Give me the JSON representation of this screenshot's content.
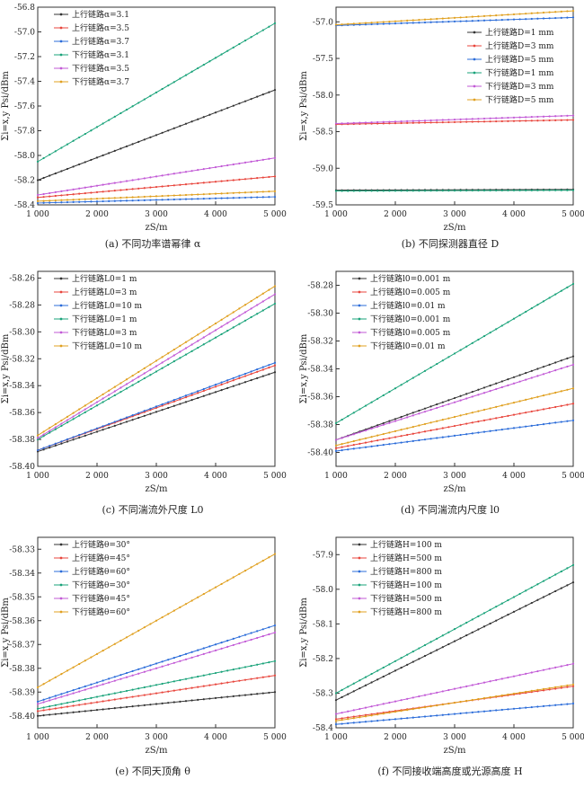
{
  "chart_data": [
    {
      "type": "line",
      "caption": "(a) 不同功率谱幂律 α",
      "ylabel": "Σi=x,y Psi/dBm",
      "xlabel": "zS/m",
      "xlim": [
        1000,
        5000
      ],
      "ylim": [
        -58.4,
        -56.8
      ],
      "xticks": [
        "1 000",
        "2 000",
        "3 000",
        "4 000",
        "5 000"
      ],
      "yticks": [
        "-56.8",
        "-57.0",
        "-57.2",
        "-57.4",
        "-57.6",
        "-57.8",
        "-58.0",
        "-58.2",
        "-58.4"
      ],
      "grid": false,
      "legend_position": "upper-left",
      "series": [
        {
          "name": "上行链路α=3.1",
          "color": "#333333",
          "x": [
            1000,
            5000
          ],
          "y": [
            -58.2,
            -57.47
          ]
        },
        {
          "name": "上行链路α=3.5",
          "color": "#e8453c",
          "x": [
            1000,
            5000
          ],
          "y": [
            -58.34,
            -58.17
          ]
        },
        {
          "name": "上行链路α=3.7",
          "color": "#2b6cd9",
          "x": [
            1000,
            5000
          ],
          "y": [
            -58.385,
            -58.335
          ]
        },
        {
          "name": "下行链路α=3.1",
          "color": "#1aa37a",
          "x": [
            1000,
            5000
          ],
          "y": [
            -58.05,
            -56.93
          ]
        },
        {
          "name": "下行链路α=3.5",
          "color": "#c25ad6",
          "x": [
            1000,
            5000
          ],
          "y": [
            -58.32,
            -58.02
          ]
        },
        {
          "name": "下行链路α=3.7",
          "color": "#e0a020",
          "x": [
            1000,
            5000
          ],
          "y": [
            -58.37,
            -58.29
          ]
        }
      ]
    },
    {
      "type": "line",
      "caption": "(b) 不同探测器直径 D",
      "ylabel": "Σi=x,y Psi/dBm",
      "xlabel": "zS/m",
      "xlim": [
        1000,
        5000
      ],
      "ylim": [
        -59.5,
        -56.8
      ],
      "xticks": [
        "1 000",
        "2 000",
        "3 000",
        "4 000",
        "5 000"
      ],
      "yticks": [
        "-57.0",
        "-57.5",
        "-58.0",
        "-58.5",
        "-59.0",
        "-59.5"
      ],
      "grid": false,
      "legend_position": "upper-right",
      "series": [
        {
          "name": "上行链路D=1 mm",
          "color": "#333333",
          "x": [
            1000,
            5000
          ],
          "y": [
            -59.3,
            -59.29
          ]
        },
        {
          "name": "上行链路D=3 mm",
          "color": "#e8453c",
          "x": [
            1000,
            5000
          ],
          "y": [
            -58.4,
            -58.34
          ]
        },
        {
          "name": "上行链路D=5 mm",
          "color": "#2b6cd9",
          "x": [
            1000,
            5000
          ],
          "y": [
            -57.05,
            -56.94
          ]
        },
        {
          "name": "下行链路D=1 mm",
          "color": "#1aa37a",
          "x": [
            1000,
            5000
          ],
          "y": [
            -59.31,
            -59.3
          ]
        },
        {
          "name": "下行链路D=3 mm",
          "color": "#c25ad6",
          "x": [
            1000,
            5000
          ],
          "y": [
            -58.39,
            -58.28
          ]
        },
        {
          "name": "下行链路D=5 mm",
          "color": "#e0a020",
          "x": [
            1000,
            5000
          ],
          "y": [
            -57.04,
            -56.85
          ]
        }
      ]
    },
    {
      "type": "line",
      "caption": "(c) 不同湍流外尺度 L0",
      "ylabel": "Σi=x,y Psi/dBm",
      "xlabel": "zS/m",
      "xlim": [
        1000,
        5000
      ],
      "ylim": [
        -58.4,
        -58.255
      ],
      "xticks": [
        "1 000",
        "2 000",
        "3 000",
        "4 000",
        "5 000"
      ],
      "yticks": [
        "-58.26",
        "-58.28",
        "-58.30",
        "-58.32",
        "-58.34",
        "-58.36",
        "-58.38",
        "-58.40"
      ],
      "grid": false,
      "legend_position": "upper-left",
      "series": [
        {
          "name": "上行链路L0=1 m",
          "color": "#333333",
          "x": [
            1000,
            5000
          ],
          "y": [
            -58.389,
            -58.33
          ]
        },
        {
          "name": "上行链路L0=3 m",
          "color": "#e8453c",
          "x": [
            1000,
            5000
          ],
          "y": [
            -58.388,
            -58.325
          ]
        },
        {
          "name": "上行链路L0=10 m",
          "color": "#2b6cd9",
          "x": [
            1000,
            5000
          ],
          "y": [
            -58.388,
            -58.323
          ]
        },
        {
          "name": "下行链路L0=1 m",
          "color": "#1aa37a",
          "x": [
            1000,
            5000
          ],
          "y": [
            -58.38,
            -58.279
          ]
        },
        {
          "name": "下行链路L0=3 m",
          "color": "#c25ad6",
          "x": [
            1000,
            5000
          ],
          "y": [
            -58.379,
            -58.272
          ]
        },
        {
          "name": "下行链路L0=10 m",
          "color": "#e0a020",
          "x": [
            1000,
            5000
          ],
          "y": [
            -58.377,
            -58.266
          ]
        }
      ]
    },
    {
      "type": "line",
      "caption": "(d) 不同湍流内尺度 l0",
      "ylabel": "Σi=x,y Psi/dBm",
      "xlabel": "zS/m",
      "xlim": [
        1000,
        5000
      ],
      "ylim": [
        -58.41,
        -58.27
      ],
      "xticks": [
        "1 000",
        "2 000",
        "3 000",
        "4 000",
        "5 000"
      ],
      "yticks": [
        "-58.28",
        "-58.30",
        "-58.32",
        "-58.34",
        "-58.36",
        "-58.38",
        "-58.40"
      ],
      "grid": false,
      "legend_position": "upper-left",
      "series": [
        {
          "name": "上行链路l0=0.001 m",
          "color": "#333333",
          "x": [
            1000,
            5000
          ],
          "y": [
            -58.391,
            -58.331
          ]
        },
        {
          "name": "上行链路l0=0.005 m",
          "color": "#e8453c",
          "x": [
            1000,
            5000
          ],
          "y": [
            -58.397,
            -58.365
          ]
        },
        {
          "name": "上行链路l0=0.01 m",
          "color": "#2b6cd9",
          "x": [
            1000,
            5000
          ],
          "y": [
            -58.399,
            -58.377
          ]
        },
        {
          "name": "下行链路l0=0.001 m",
          "color": "#1aa37a",
          "x": [
            1000,
            5000
          ],
          "y": [
            -58.379,
            -58.279
          ]
        },
        {
          "name": "下行链路l0=0.005 m",
          "color": "#c25ad6",
          "x": [
            1000,
            5000
          ],
          "y": [
            -58.391,
            -58.337
          ]
        },
        {
          "name": "下行链路l0=0.01 m",
          "color": "#e0a020",
          "x": [
            1000,
            5000
          ],
          "y": [
            -58.395,
            -58.354
          ]
        }
      ]
    },
    {
      "type": "line",
      "caption": "(e) 不同天顶角 θ",
      "ylabel": "Σi=x,y Psi/dBm",
      "xlabel": "zS/m",
      "xlim": [
        1000,
        5000
      ],
      "ylim": [
        -58.405,
        -58.325
      ],
      "xticks": [
        "1 000",
        "2 000",
        "3 000",
        "4 000",
        "5 000"
      ],
      "yticks": [
        "-58.33",
        "-58.34",
        "-58.35",
        "-58.36",
        "-58.37",
        "-58.38",
        "-58.39",
        "-58.40"
      ],
      "grid": false,
      "legend_position": "upper-left",
      "series": [
        {
          "name": "上行链路θ=30°",
          "color": "#333333",
          "x": [
            1000,
            5000
          ],
          "y": [
            -58.4,
            -58.39
          ]
        },
        {
          "name": "上行链路θ=45°",
          "color": "#e8453c",
          "x": [
            1000,
            5000
          ],
          "y": [
            -58.398,
            -58.383
          ]
        },
        {
          "name": "上行链路θ=60°",
          "color": "#2b6cd9",
          "x": [
            1000,
            5000
          ],
          "y": [
            -58.394,
            -58.362
          ]
        },
        {
          "name": "下行链路θ=30°",
          "color": "#1aa37a",
          "x": [
            1000,
            5000
          ],
          "y": [
            -58.397,
            -58.377
          ]
        },
        {
          "name": "下行链路θ=45°",
          "color": "#c25ad6",
          "x": [
            1000,
            5000
          ],
          "y": [
            -58.395,
            -58.365
          ]
        },
        {
          "name": "下行链路θ=60°",
          "color": "#e0a020",
          "x": [
            1000,
            5000
          ],
          "y": [
            -58.388,
            -58.332
          ]
        }
      ]
    },
    {
      "type": "line",
      "caption": "(f) 不同接收端高度或光源高度 H",
      "ylabel": "Σi=x,y Psi/dBm",
      "xlabel": "zS/m",
      "xlim": [
        1000,
        5000
      ],
      "ylim": [
        -58.4,
        -57.85
      ],
      "xticks": [
        "1 000",
        "2 000",
        "3 000",
        "4 000",
        "5 000"
      ],
      "yticks": [
        "-57.9",
        "-58.0",
        "-58.1",
        "-58.2",
        "-58.3",
        "-58.4"
      ],
      "grid": false,
      "legend_position": "upper-left",
      "series": [
        {
          "name": "上行链路H=100 m",
          "color": "#333333",
          "x": [
            1000,
            5000
          ],
          "y": [
            -58.32,
            -57.98
          ]
        },
        {
          "name": "上行链路H=500 m",
          "color": "#e8453c",
          "x": [
            1000,
            5000
          ],
          "y": [
            -58.375,
            -58.28
          ]
        },
        {
          "name": "上行链路H=800 m",
          "color": "#2b6cd9",
          "x": [
            1000,
            5000
          ],
          "y": [
            -58.39,
            -58.33
          ]
        },
        {
          "name": "下行链路H=100 m",
          "color": "#1aa37a",
          "x": [
            1000,
            5000
          ],
          "y": [
            -58.3,
            -57.93
          ]
        },
        {
          "name": "下行链路H=500 m",
          "color": "#c25ad6",
          "x": [
            1000,
            5000
          ],
          "y": [
            -58.36,
            -58.215
          ]
        },
        {
          "name": "下行链路H=800 m",
          "color": "#e0a020",
          "x": [
            1000,
            5000
          ],
          "y": [
            -58.38,
            -58.275
          ]
        }
      ]
    }
  ]
}
